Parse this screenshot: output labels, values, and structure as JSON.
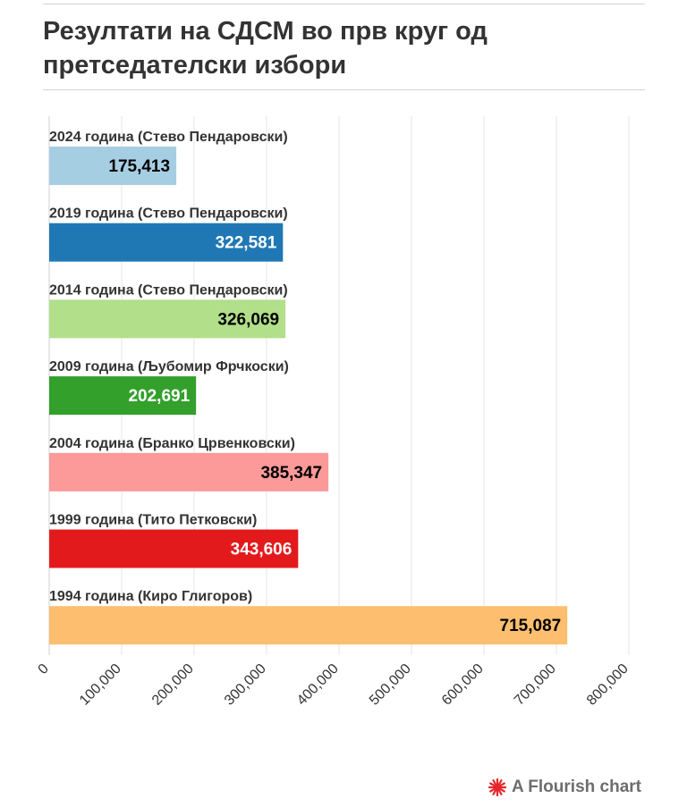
{
  "header": {
    "title": "Резултати на СДСМ во прв круг од претседателски избори"
  },
  "footer": {
    "credit": "A Flourish chart",
    "icon": "flourish-logo-icon",
    "icon_color": "#e5262b"
  },
  "chart_data": {
    "type": "bar",
    "orientation": "horizontal",
    "categories": [
      "2024 година (Стево Пендаровски)",
      "2019 година (Стево Пендаровски)",
      "2014 година (Стево Пендаровски)",
      "2009 година (Љубомир Фрчкоски)",
      "2004 година (Бранко Црвенковски)",
      "1999 година (Тито Петковски)",
      "1994 година (Киро Глигоров)"
    ],
    "values": [
      175413,
      322581,
      326069,
      202691,
      385347,
      343606,
      715087
    ],
    "value_labels": [
      "175,413",
      "322,581",
      "326,069",
      "202,691",
      "385,347",
      "343,606",
      "715,087"
    ],
    "colors": [
      "#a6cee3",
      "#1f78b4",
      "#b2df8a",
      "#33a02c",
      "#fb9a99",
      "#e31a1c",
      "#fdbf6f"
    ],
    "label_colors": [
      "#000000",
      "#ffffff",
      "#000000",
      "#ffffff",
      "#000000",
      "#ffffff",
      "#000000"
    ],
    "xlim": [
      0,
      800000
    ],
    "x_ticks": [
      0,
      100000,
      200000,
      300000,
      400000,
      500000,
      600000,
      700000,
      800000
    ],
    "x_tick_labels": [
      "0",
      "100,000",
      "200,000",
      "300,000",
      "400,000",
      "500,000",
      "600,000",
      "700,000",
      "800,000"
    ],
    "grid": true,
    "xlabel": "",
    "ylabel": ""
  }
}
